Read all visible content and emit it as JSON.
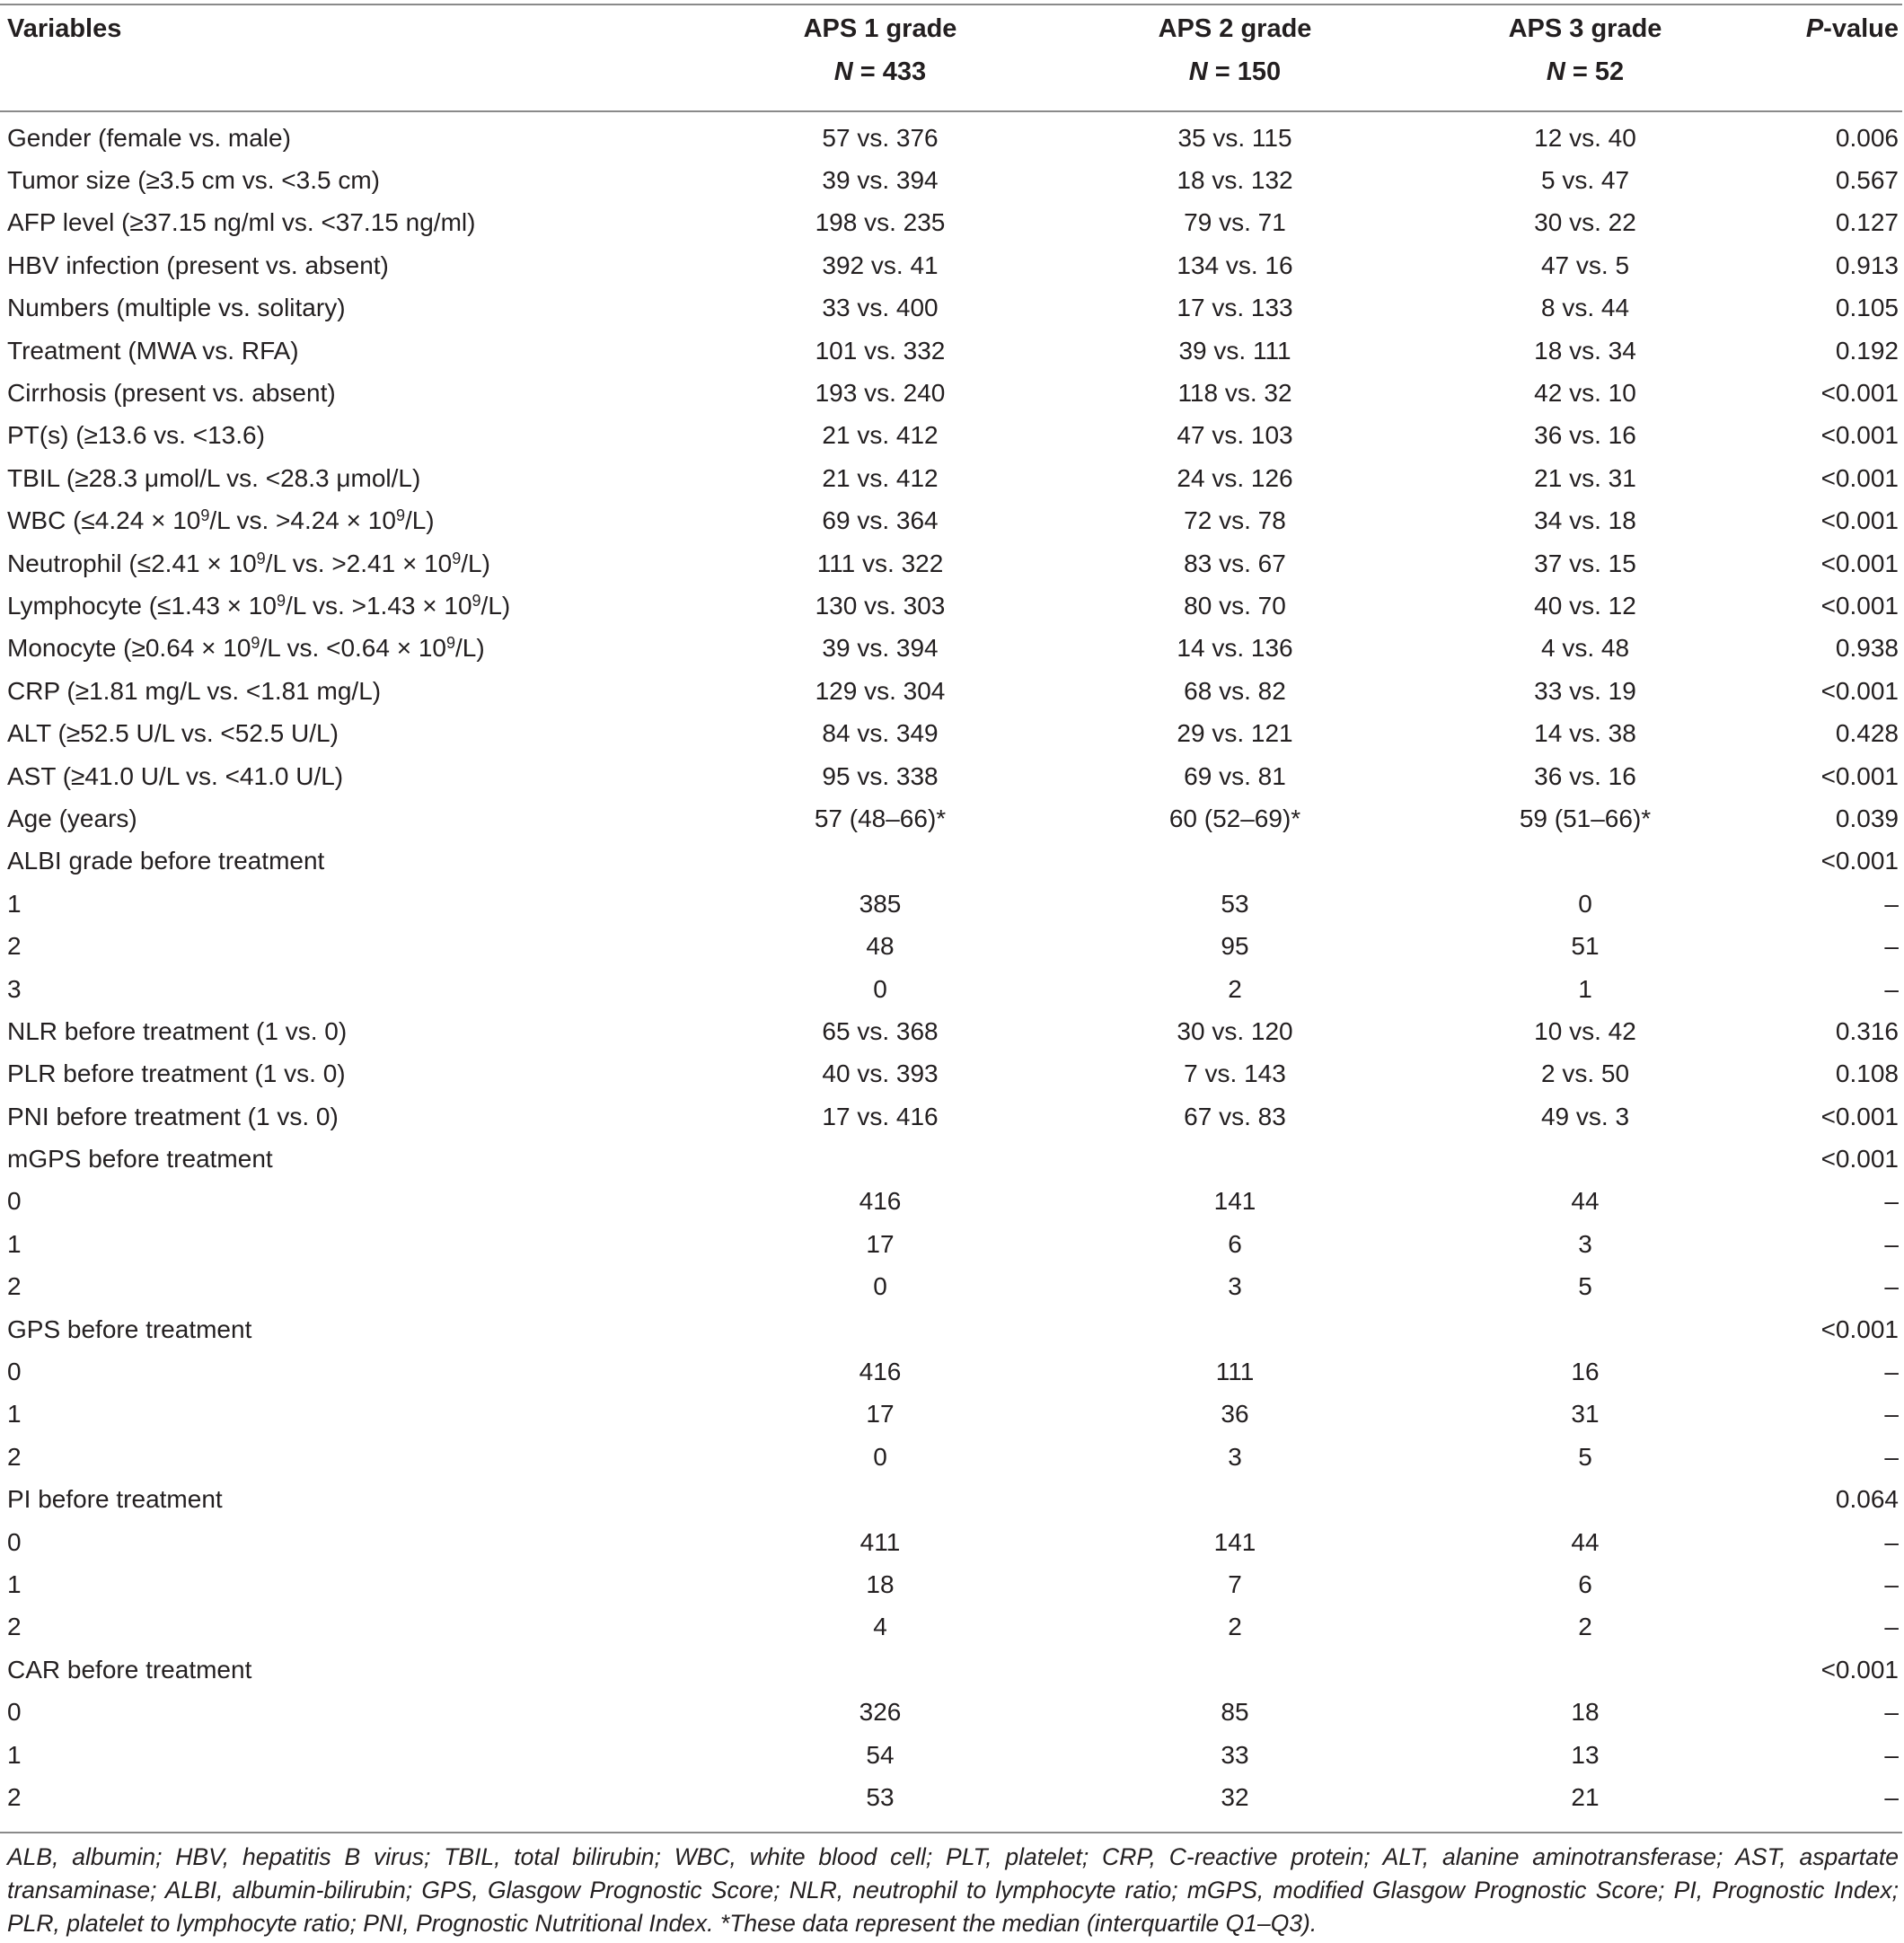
{
  "header": {
    "variables": "Variables",
    "aps1_label": "APS 1 grade",
    "aps1_n_prefix": "N",
    "aps1_n_value": " = 433",
    "aps2_label": "APS 2 grade",
    "aps2_n_prefix": "N",
    "aps2_n_value": " = 150",
    "aps3_label": "APS 3 grade",
    "aps3_n_prefix": "N",
    "aps3_n_value": " = 52",
    "p_prefix": "P",
    "p_suffix": "-value"
  },
  "rows": [
    {
      "variable": "Gender (female vs. male)",
      "aps1": "57 vs. 376",
      "aps2": "35 vs. 115",
      "aps3": "12 vs. 40",
      "p": "0.006"
    },
    {
      "variable": "Tumor size (≥3.5 cm vs. <3.5 cm)",
      "aps1": "39 vs. 394",
      "aps2": "18 vs. 132",
      "aps3": "5 vs. 47",
      "p": "0.567"
    },
    {
      "variable": "AFP level (≥37.15 ng/ml vs. <37.15 ng/ml)",
      "aps1": "198 vs. 235",
      "aps2": "79 vs. 71",
      "aps3": "30 vs. 22",
      "p": "0.127"
    },
    {
      "variable": "HBV infection (present vs. absent)",
      "aps1": "392 vs. 41",
      "aps2": "134 vs. 16",
      "aps3": "47 vs. 5",
      "p": "0.913"
    },
    {
      "variable": "Numbers (multiple vs. solitary)",
      "aps1": "33 vs. 400",
      "aps2": "17 vs. 133",
      "aps3": "8 vs. 44",
      "p": "0.105"
    },
    {
      "variable": "Treatment (MWA vs. RFA)",
      "aps1": "101 vs. 332",
      "aps2": "39 vs. 111",
      "aps3": "18 vs. 34",
      "p": "0.192"
    },
    {
      "variable": "Cirrhosis (present vs. absent)",
      "aps1": "193 vs. 240",
      "aps2": "118 vs. 32",
      "aps3": "42 vs. 10",
      "p": "<0.001"
    },
    {
      "variable": "PT(s) (≥13.6 vs. <13.6)",
      "aps1": "21 vs. 412",
      "aps2": "47 vs. 103",
      "aps3": "36 vs. 16",
      "p": "<0.001"
    },
    {
      "variable": "TBIL (≥28.3 μmol/L vs. <28.3 μmol/L)",
      "aps1": "21 vs. 412",
      "aps2": "24 vs. 126",
      "aps3": "21 vs. 31",
      "p": "<0.001"
    },
    {
      "variable": "",
      "aps1": "69 vs. 364",
      "aps2": "72 vs. 78",
      "aps3": "34 vs. 18",
      "p": "<0.001"
    },
    {
      "variable": "",
      "aps1": "111 vs. 322",
      "aps2": "83 vs. 67",
      "aps3": "37 vs. 15",
      "p": "<0.001"
    },
    {
      "variable": "",
      "aps1": "130 vs. 303",
      "aps2": "80 vs. 70",
      "aps3": "40 vs. 12",
      "p": "<0.001"
    },
    {
      "variable": "",
      "aps1": "39 vs. 394",
      "aps2": "14 vs. 136",
      "aps3": "4 vs. 48",
      "p": "0.938"
    },
    {
      "variable": "CRP (≥1.81 mg/L vs. <1.81 mg/L)",
      "aps1": "129 vs. 304",
      "aps2": "68 vs. 82",
      "aps3": "33 vs. 19",
      "p": "<0.001"
    },
    {
      "variable": "ALT (≥52.5 U/L vs. <52.5 U/L)",
      "aps1": "84 vs. 349",
      "aps2": "29 vs. 121",
      "aps3": "14 vs. 38",
      "p": "0.428"
    },
    {
      "variable": "AST (≥41.0 U/L vs. <41.0 U/L)",
      "aps1": "95 vs. 338",
      "aps2": "69 vs. 81",
      "aps3": "36 vs. 16",
      "p": "<0.001"
    },
    {
      "variable": "Age (years)",
      "aps1": "57 (48–66)*",
      "aps2": "60 (52–69)*",
      "aps3": "59 (51–66)*",
      "p": "0.039"
    },
    {
      "variable": "ALBI grade before treatment",
      "aps1": "",
      "aps2": "",
      "aps3": "",
      "p": "<0.001"
    },
    {
      "variable": "1",
      "aps1": "385",
      "aps2": "53",
      "aps3": "0",
      "p": "–"
    },
    {
      "variable": "2",
      "aps1": "48",
      "aps2": "95",
      "aps3": "51",
      "p": "–"
    },
    {
      "variable": "3",
      "aps1": "0",
      "aps2": "2",
      "aps3": "1",
      "p": "–"
    },
    {
      "variable": "NLR before treatment (1 vs. 0)",
      "aps1": "65 vs. 368",
      "aps2": "30 vs. 120",
      "aps3": "10 vs. 42",
      "p": "0.316"
    },
    {
      "variable": "PLR before treatment (1 vs. 0)",
      "aps1": "40 vs. 393",
      "aps2": "7 vs. 143",
      "aps3": "2 vs. 50",
      "p": "0.108"
    },
    {
      "variable": "PNI before treatment (1 vs. 0)",
      "aps1": "17 vs. 416",
      "aps2": "67 vs. 83",
      "aps3": "49 vs. 3",
      "p": "<0.001"
    },
    {
      "variable": "mGPS before treatment",
      "aps1": "",
      "aps2": "",
      "aps3": "",
      "p": "<0.001"
    },
    {
      "variable": "0",
      "aps1": "416",
      "aps2": "141",
      "aps3": "44",
      "p": "–"
    },
    {
      "variable": "1",
      "aps1": "17",
      "aps2": "6",
      "aps3": "3",
      "p": "–"
    },
    {
      "variable": "2",
      "aps1": "0",
      "aps2": "3",
      "aps3": "5",
      "p": "–"
    },
    {
      "variable": "GPS before treatment",
      "aps1": "",
      "aps2": "",
      "aps3": "",
      "p": "<0.001"
    },
    {
      "variable": "0",
      "aps1": "416",
      "aps2": "111",
      "aps3": "16",
      "p": "–"
    },
    {
      "variable": "1",
      "aps1": "17",
      "aps2": "36",
      "aps3": "31",
      "p": "–"
    },
    {
      "variable": "2",
      "aps1": "0",
      "aps2": "3",
      "aps3": "5",
      "p": "–"
    },
    {
      "variable": "PI before treatment",
      "aps1": "",
      "aps2": "",
      "aps3": "",
      "p": "0.064"
    },
    {
      "variable": "0",
      "aps1": "411",
      "aps2": "141",
      "aps3": "44",
      "p": "–"
    },
    {
      "variable": "1",
      "aps1": "18",
      "aps2": "7",
      "aps3": "6",
      "p": "–"
    },
    {
      "variable": "2",
      "aps1": "4",
      "aps2": "2",
      "aps3": "2",
      "p": "–"
    },
    {
      "variable": "CAR before treatment",
      "aps1": "",
      "aps2": "",
      "aps3": "",
      "p": "<0.001"
    },
    {
      "variable": "0",
      "aps1": "326",
      "aps2": "85",
      "aps3": "18",
      "p": "–"
    },
    {
      "variable": "1",
      "aps1": "54",
      "aps2": "33",
      "aps3": "13",
      "p": "–"
    },
    {
      "variable": "2",
      "aps1": "53",
      "aps2": "32",
      "aps3": "21",
      "p": "–"
    }
  ],
  "rich_labels": {
    "wbc": {
      "a": "WBC (≤4.24 × 10",
      "sup1": "9",
      "b": "/L vs. >4.24 × 10",
      "sup2": "9",
      "c": "/L)"
    },
    "neutrophil": {
      "a": "Neutrophil (≤2.41 × 10",
      "sup1": "9",
      "b": "/L vs. >2.41 × 10",
      "sup2": "9",
      "c": "/L)"
    },
    "lymphocyte": {
      "a": "Lymphocyte (≤1.43 × 10",
      "sup1": "9",
      "b": "/L vs. >1.43 × 10",
      "sup2": "9",
      "c": "/L)"
    },
    "monocyte": {
      "a": "Monocyte (≥0.64 × 10",
      "sup1": "9",
      "b": "/L vs. <0.64 × 10",
      "sup2": "9",
      "c": "/L)"
    }
  },
  "footnote": "ALB, albumin; HBV, hepatitis B virus; TBIL, total bilirubin; WBC, white blood cell; PLT, platelet; CRP, C-reactive protein; ALT, alanine aminotransferase; AST, aspartate transaminase; ALBI, albumin-bilirubin; GPS, Glasgow Prognostic Score; NLR, neutrophil to lymphocyte ratio; mGPS, modified Glasgow Prognostic Score; PI, Prognostic Index; PLR, platelet to lymphocyte ratio; PNI, Prognostic Nutritional Index. *These data represent the median (interquartile Q1–Q3)."
}
